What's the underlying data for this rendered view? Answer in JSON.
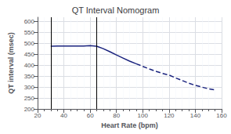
{
  "chart_data": {
    "type": "line",
    "title": "QT Interval Nomogram",
    "xlabel": "Heart Rate (bpm)",
    "ylabel": "QT interval (msec)",
    "x": [
      30,
      35,
      40,
      45,
      50,
      55,
      60,
      65,
      70,
      75,
      80,
      85,
      90,
      95,
      100,
      105,
      110,
      115,
      120,
      125,
      130,
      135,
      140,
      145,
      150,
      155
    ],
    "series": [
      {
        "line_style": "solid",
        "values": [
          487,
          488,
          488,
          488,
          488,
          488,
          490,
          487,
          476,
          462,
          447,
          433,
          419,
          407,
          null,
          null,
          null,
          null,
          null,
          null,
          null,
          null,
          null,
          null,
          null,
          null
        ]
      },
      {
        "line_style": "dashed",
        "values": [
          null,
          null,
          null,
          null,
          null,
          null,
          null,
          null,
          null,
          null,
          null,
          null,
          null,
          407,
          395,
          383,
          372,
          363,
          355,
          342,
          330,
          318,
          308,
          300,
          292,
          287
        ]
      }
    ],
    "color": "#1a237e",
    "vlines": [
      30,
      65
    ],
    "xlim": [
      20,
      160
    ],
    "xticks": [
      20,
      40,
      60,
      80,
      100,
      120,
      140,
      160
    ],
    "ylim": [
      200,
      620
    ],
    "yticks": [
      200,
      250,
      300,
      350,
      400,
      450,
      500,
      550,
      600
    ],
    "grid": true
  }
}
